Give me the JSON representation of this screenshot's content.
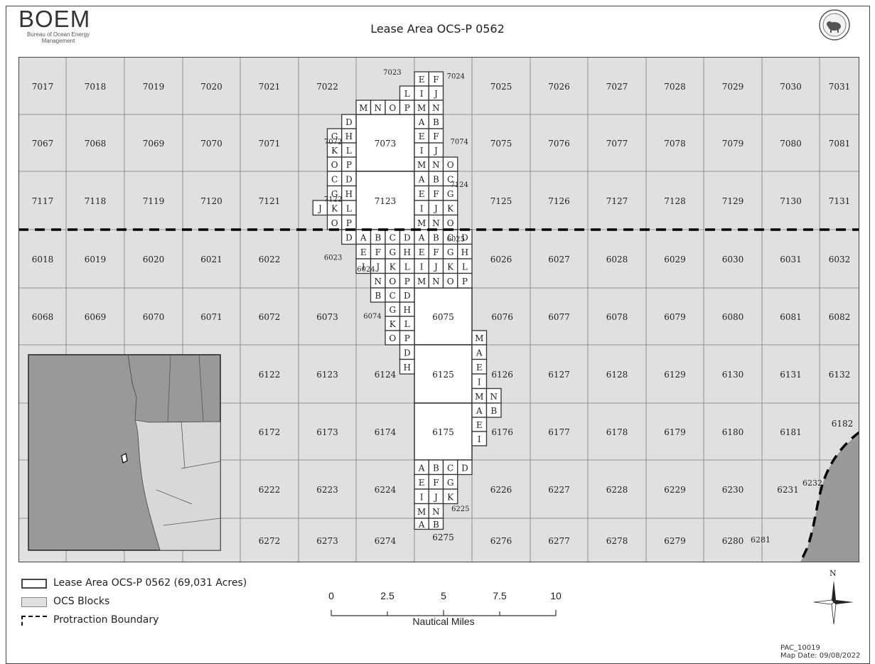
{
  "header": {
    "agency_wordmark": "BOEM",
    "agency_name": "Bureau of Ocean Energy Management",
    "title": "Lease Area OCS-P 0562"
  },
  "map": {
    "block_rows": [
      [
        "7017",
        "7018",
        "7019",
        "7020",
        "7021",
        "7022",
        "7023",
        "7024",
        "7025",
        "7026",
        "7027",
        "7028",
        "7029",
        "7030",
        "7031"
      ],
      [
        "7067",
        "7068",
        "7069",
        "7070",
        "7071",
        "7072",
        "7073",
        "7074",
        "7075",
        "7076",
        "7077",
        "7078",
        "7079",
        "7080",
        "7081"
      ],
      [
        "7117",
        "7118",
        "7119",
        "7120",
        "7121",
        "7122",
        "7123",
        "7124",
        "7125",
        "7126",
        "7127",
        "7128",
        "7129",
        "7130",
        "7131"
      ],
      [
        "6018",
        "6019",
        "6020",
        "6021",
        "6022",
        "6023",
        "6024",
        "6025",
        "6026",
        "6027",
        "6028",
        "6029",
        "6030",
        "6031",
        "6032"
      ],
      [
        "6068",
        "6069",
        "6070",
        "6071",
        "6072",
        "6073",
        "6074",
        "6075",
        "6076",
        "6077",
        "6078",
        "6079",
        "6080",
        "6081",
        "6082"
      ],
      [
        "",
        "",
        "",
        "",
        "6122",
        "6123",
        "6124",
        "6125",
        "6126",
        "6127",
        "6128",
        "6129",
        "6130",
        "6131",
        "6132"
      ],
      [
        "",
        "",
        "",
        "",
        "6172",
        "6173",
        "6174",
        "6175",
        "6176",
        "6177",
        "6178",
        "6179",
        "6180",
        "6181",
        "6182"
      ],
      [
        "",
        "",
        "",
        "",
        "6222",
        "6223",
        "6224",
        "6225",
        "6226",
        "6227",
        "6228",
        "6229",
        "6230",
        "6231",
        "6232"
      ],
      [
        "",
        "",
        "",
        "",
        "6272",
        "6273",
        "6274",
        "6275",
        "6276",
        "6277",
        "6278",
        "6279",
        "6280",
        "6281",
        ""
      ]
    ],
    "colors": {
      "ocs_block": "#e0e0e0",
      "lease_area": "#ffffff",
      "land": "#999999",
      "grid_line": "#7a7a7a",
      "outline": "#333333"
    }
  },
  "legend": {
    "lease_area": "Lease Area OCS-P 0562 (69,031 Acres)",
    "ocs_blocks": "OCS Blocks",
    "protraction_boundary": "Protraction Boundary"
  },
  "scale_bar": {
    "ticks": [
      "0",
      "2.5",
      "5",
      "7.5",
      "10"
    ],
    "unit": "Nautical Miles"
  },
  "north_arrow": {
    "label": "N"
  },
  "credits": {
    "map_id": "PAC_10019",
    "map_date": "Map Date: 09/08/2022"
  }
}
